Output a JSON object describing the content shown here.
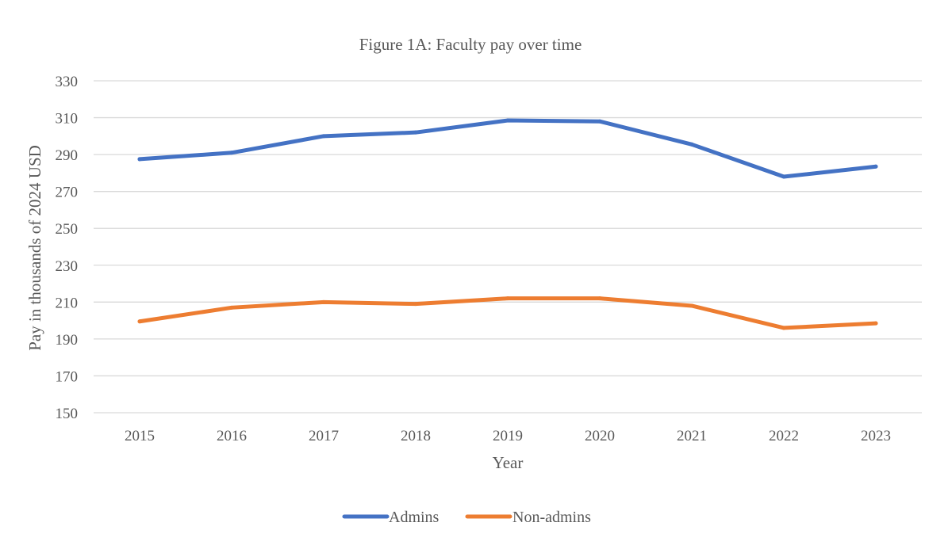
{
  "chart_data": {
    "type": "line",
    "title": "Figure 1A: Faculty pay over time",
    "xlabel": "Year",
    "ylabel": "Pay in thousands of 2024 USD",
    "ylim": [
      150,
      330
    ],
    "yticks": [
      "150",
      "170",
      "190",
      "210",
      "230",
      "250",
      "270",
      "290",
      "310",
      "330"
    ],
    "categories": [
      "2015",
      "2016",
      "2017",
      "2018",
      "2019",
      "2020",
      "2021",
      "2022",
      "2023"
    ],
    "grid": true,
    "legend_position": "bottom",
    "series": [
      {
        "name": "Admins",
        "color": "#4472c4",
        "values": [
          287.5,
          291,
          300,
          302,
          308.5,
          308,
          295.5,
          278,
          283.5
        ]
      },
      {
        "name": "Non-admins",
        "color": "#ed7d31",
        "values": [
          199.5,
          207,
          210,
          209,
          212,
          212,
          208,
          196,
          198.5
        ]
      }
    ]
  }
}
